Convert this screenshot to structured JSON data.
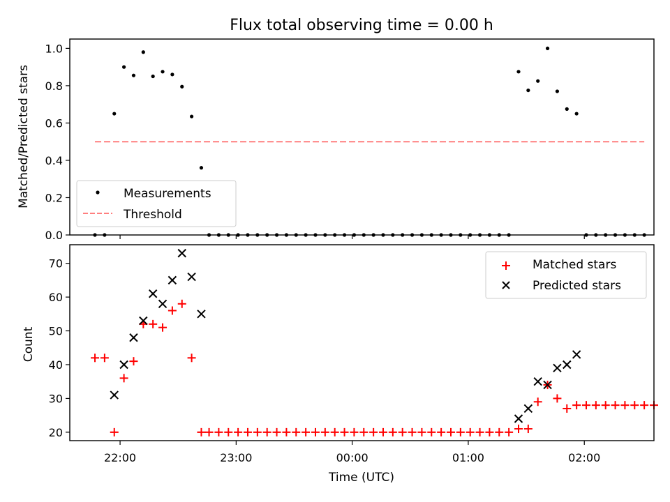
{
  "chart_data": [
    {
      "type": "scatter",
      "title": "Flux total observing time = 0.00 h",
      "ylabel": "Matched/Predicted stars",
      "ylim": [
        0,
        1.05
      ],
      "yticks": [
        0.0,
        0.2,
        0.4,
        0.6,
        0.8,
        1.0
      ],
      "ytick_labels": [
        "0.0",
        "0.2",
        "0.4",
        "0.6",
        "0.8",
        "1.0"
      ],
      "xlim_minutes": [
        -26,
        276
      ],
      "xticks_minutes": [
        0,
        60,
        120,
        180,
        240
      ],
      "legend_position": "lower-left",
      "series": [
        {
          "name": "Measurements",
          "marker": "dot",
          "color": "#000000",
          "points": [
            [
              -13,
              0
            ],
            [
              -8,
              0
            ],
            [
              -3,
              0.65
            ],
            [
              2,
              0.9
            ],
            [
              7,
              0.855
            ],
            [
              12,
              0.98
            ],
            [
              17,
              0.85
            ],
            [
              22,
              0.875
            ],
            [
              27,
              0.86
            ],
            [
              32,
              0.795
            ],
            [
              37,
              0.635
            ],
            [
              42,
              0.36
            ],
            [
              46,
              0
            ],
            [
              51,
              0
            ],
            [
              56,
              0
            ],
            [
              61,
              0
            ],
            [
              66,
              0
            ],
            [
              71,
              0
            ],
            [
              76,
              0
            ],
            [
              81,
              0
            ],
            [
              86,
              0
            ],
            [
              91,
              0
            ],
            [
              96,
              0
            ],
            [
              101,
              0
            ],
            [
              106,
              0
            ],
            [
              111,
              0
            ],
            [
              116,
              0
            ],
            [
              121,
              0
            ],
            [
              126,
              0
            ],
            [
              131,
              0
            ],
            [
              136,
              0
            ],
            [
              141,
              0
            ],
            [
              146,
              0
            ],
            [
              151,
              0
            ],
            [
              156,
              0
            ],
            [
              161,
              0
            ],
            [
              166,
              0
            ],
            [
              171,
              0
            ],
            [
              176,
              0
            ],
            [
              181,
              0
            ],
            [
              186,
              0
            ],
            [
              191,
              0
            ],
            [
              196,
              0
            ],
            [
              201,
              0
            ],
            [
              206,
              0.875
            ],
            [
              211,
              0.775
            ],
            [
              216,
              0.825
            ],
            [
              221,
              1.0
            ],
            [
              226,
              0.77
            ],
            [
              231,
              0.675
            ],
            [
              236,
              0.65
            ],
            [
              241,
              0
            ],
            [
              246,
              0
            ],
            [
              251,
              0
            ],
            [
              256,
              0
            ],
            [
              261,
              0
            ],
            [
              266,
              0
            ],
            [
              271,
              0
            ]
          ]
        },
        {
          "name": "Threshold",
          "line": "dashed",
          "color": "#ff7f7f",
          "x_range": [
            -13,
            271
          ],
          "y": 0.5
        }
      ]
    },
    {
      "type": "scatter",
      "xlabel": "Time (UTC)",
      "ylabel": "Count",
      "ylim": [
        17.5,
        75.5
      ],
      "yticks": [
        20,
        30,
        40,
        50,
        60,
        70
      ],
      "ytick_labels": [
        "20",
        "30",
        "40",
        "50",
        "60",
        "70"
      ],
      "xlim_minutes": [
        -26,
        276
      ],
      "xticks_minutes": [
        0,
        60,
        120,
        180,
        240
      ],
      "xtick_labels": [
        "22:00",
        "23:00",
        "00:00",
        "01:00",
        "02:00"
      ],
      "legend_position": "top-right",
      "series": [
        {
          "name": "Matched stars",
          "marker": "plus",
          "color": "#ff0000",
          "points": [
            [
              -13,
              42
            ],
            [
              -8,
              42
            ],
            [
              -3,
              20
            ],
            [
              2,
              36
            ],
            [
              7,
              41
            ],
            [
              12,
              52
            ],
            [
              17,
              52
            ],
            [
              22,
              51
            ],
            [
              27,
              56
            ],
            [
              32,
              58
            ],
            [
              37,
              42
            ],
            [
              42,
              20
            ],
            [
              46,
              20
            ],
            [
              51,
              20
            ],
            [
              56,
              20
            ],
            [
              61,
              20
            ],
            [
              66,
              20
            ],
            [
              71,
              20
            ],
            [
              76,
              20
            ],
            [
              81,
              20
            ],
            [
              86,
              20
            ],
            [
              91,
              20
            ],
            [
              96,
              20
            ],
            [
              101,
              20
            ],
            [
              106,
              20
            ],
            [
              111,
              20
            ],
            [
              116,
              20
            ],
            [
              121,
              20
            ],
            [
              126,
              20
            ],
            [
              131,
              20
            ],
            [
              136,
              20
            ],
            [
              141,
              20
            ],
            [
              146,
              20
            ],
            [
              151,
              20
            ],
            [
              156,
              20
            ],
            [
              161,
              20
            ],
            [
              166,
              20
            ],
            [
              171,
              20
            ],
            [
              176,
              20
            ],
            [
              181,
              20
            ],
            [
              186,
              20
            ],
            [
              191,
              20
            ],
            [
              196,
              20
            ],
            [
              201,
              20
            ],
            [
              206,
              21
            ],
            [
              211,
              21
            ],
            [
              216,
              29
            ],
            [
              221,
              34
            ],
            [
              226,
              30
            ],
            [
              231,
              27
            ],
            [
              236,
              28
            ],
            [
              241,
              28
            ],
            [
              246,
              28
            ],
            [
              251,
              28
            ],
            [
              256,
              28
            ],
            [
              261,
              28
            ],
            [
              266,
              28
            ],
            [
              271,
              28
            ],
            [
              276,
              28
            ]
          ]
        },
        {
          "name": "Predicted stars",
          "marker": "x",
          "color": "#000000",
          "points": [
            [
              -3,
              31
            ],
            [
              2,
              40
            ],
            [
              7,
              48
            ],
            [
              12,
              53
            ],
            [
              17,
              61
            ],
            [
              22,
              58
            ],
            [
              27,
              65
            ],
            [
              32,
              73
            ],
            [
              37,
              66
            ],
            [
              42,
              55
            ],
            [
              206,
              24
            ],
            [
              211,
              27
            ],
            [
              216,
              35
            ],
            [
              221,
              34
            ],
            [
              226,
              39
            ],
            [
              231,
              40
            ],
            [
              236,
              43
            ]
          ]
        }
      ]
    }
  ]
}
